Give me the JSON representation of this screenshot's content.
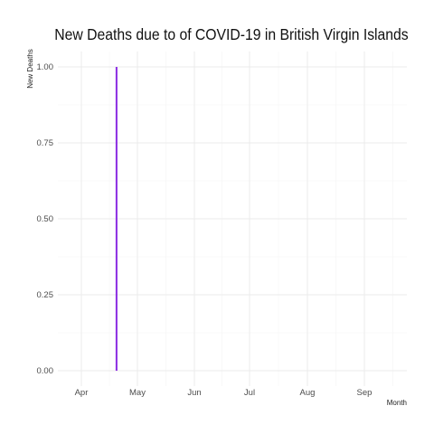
{
  "chart_data": {
    "type": "bar",
    "title": "New Deaths due to of COVID-19 in British Virgin Islands",
    "xlabel": "Month",
    "ylabel": "New Deaths",
    "x_tick_labels": [
      "Apr",
      "May",
      "Jun",
      "Jul",
      "Aug",
      "Sep"
    ],
    "y_tick_labels": [
      "0.00",
      "0.25",
      "0.50",
      "0.75",
      "1.00"
    ],
    "ylim": [
      0,
      1
    ],
    "grid": true,
    "series": [
      {
        "color": "#8a2be2",
        "points": [
          {
            "x": "2020-04-20",
            "y": 1
          }
        ]
      }
    ]
  }
}
